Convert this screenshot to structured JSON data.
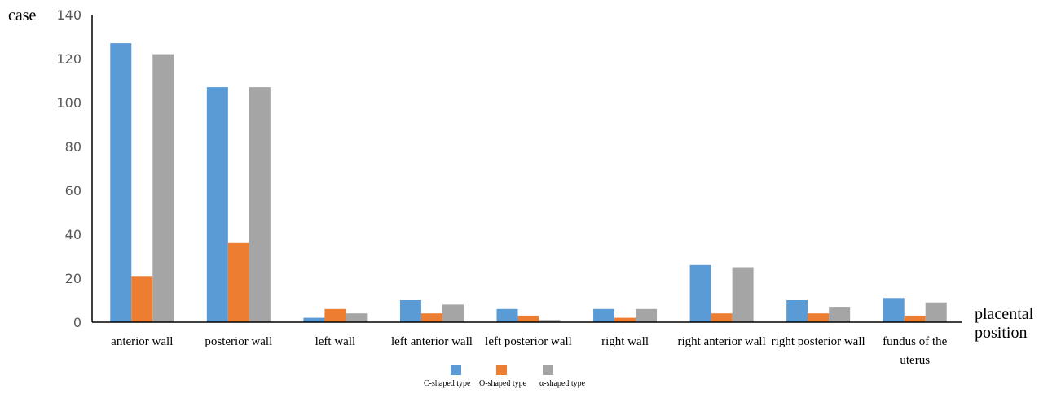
{
  "chart_data": {
    "type": "bar",
    "ylabel": "case",
    "xlabel": [
      "placental",
      "position"
    ],
    "ylim": [
      0,
      140
    ],
    "yticks": [
      "0",
      "20",
      "40",
      "60",
      "80",
      "100",
      "120",
      "140"
    ],
    "grid": false,
    "legend_position": "bottom",
    "categories": [
      [
        "anterior wall"
      ],
      [
        "posterior wall"
      ],
      [
        "left wall"
      ],
      [
        "left anterior wall"
      ],
      [
        "left posterior wall"
      ],
      [
        "right wall"
      ],
      [
        "right anterior wall"
      ],
      [
        "right posterior wall"
      ],
      [
        "fundus of the",
        "uterus"
      ]
    ],
    "series": [
      {
        "name": "C-shaped type",
        "color": "#5b9bd5",
        "values": [
          127,
          107,
          2,
          10,
          6,
          6,
          26,
          10,
          11
        ]
      },
      {
        "name": "O-shaped type",
        "color": "#ed7d31",
        "values": [
          21,
          36,
          6,
          4,
          3,
          2,
          4,
          4,
          3
        ]
      },
      {
        "name": "α-shaped type",
        "color": "#a5a5a5",
        "values": [
          122,
          107,
          4,
          8,
          1,
          6,
          25,
          7,
          9
        ]
      }
    ]
  }
}
